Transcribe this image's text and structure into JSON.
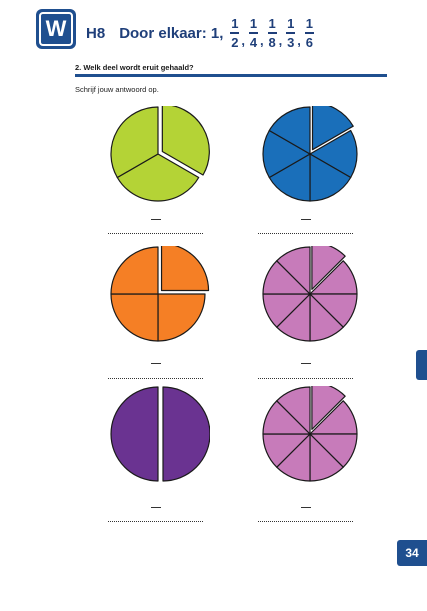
{
  "logo": {
    "letter": "W"
  },
  "header": {
    "chapter": "H8",
    "title": "Door elkaar: 1,",
    "fractions": [
      {
        "num": "1",
        "den": "2"
      },
      {
        "num": "1",
        "den": "4"
      },
      {
        "num": "1",
        "den": "8"
      },
      {
        "num": "1",
        "den": "3"
      },
      {
        "num": "1",
        "den": "6"
      }
    ],
    "separator": ","
  },
  "assignment": {
    "title": "2. Welk deel wordt eruit gehaald?",
    "instruction": "Schrijf jouw antwoord op."
  },
  "colors": {
    "green": "#b4d336",
    "blue": "#1a6fba",
    "orange": "#f57f25",
    "pink": "#c77bba",
    "purple": "#6a3391",
    "brand": "#1f4f8f"
  },
  "pies": [
    {
      "id": "green-thirds",
      "color": "#b4d336",
      "parts": 3,
      "removed": 1
    },
    {
      "id": "blue-sixths",
      "color": "#1a6fba",
      "parts": 6,
      "removed": 1
    },
    {
      "id": "orange-quarters",
      "color": "#f57f25",
      "parts": 4,
      "removed": 1
    },
    {
      "id": "pink-eighths-a",
      "color": "#c77bba",
      "parts": 8,
      "removed": 1
    },
    {
      "id": "purple-halves",
      "color": "#6a3391",
      "parts": 2,
      "removed": 1
    },
    {
      "id": "pink-eighths-b",
      "color": "#c77bba",
      "parts": 8,
      "removed": 1
    }
  ],
  "page_number": "34"
}
